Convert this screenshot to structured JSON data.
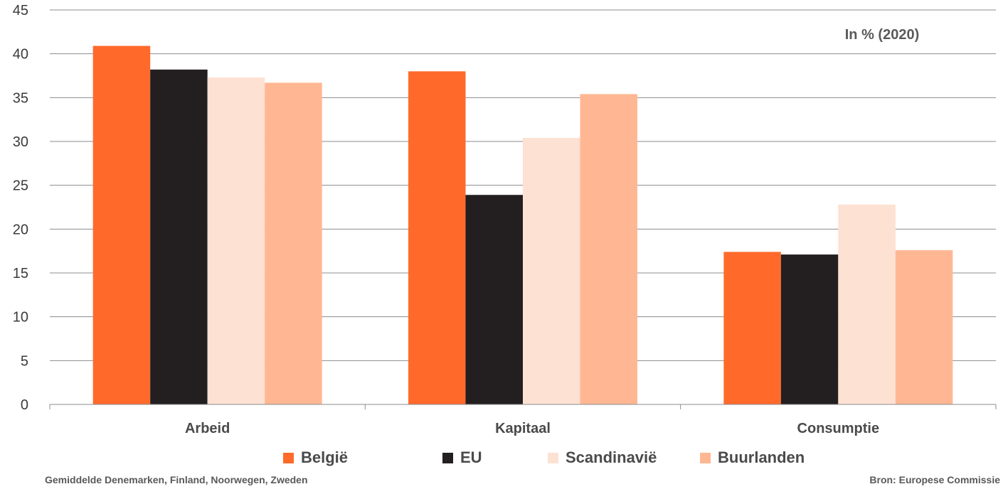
{
  "chart_data": {
    "type": "bar",
    "title": "",
    "unit_note": "In % (2020)",
    "xlabel": "",
    "ylabel": "",
    "ylim": [
      0,
      45
    ],
    "yticks": [
      0,
      5,
      10,
      15,
      20,
      25,
      30,
      35,
      40,
      45
    ],
    "grid": true,
    "legend_position": "bottom",
    "categories": [
      "Arbeid",
      "Kapitaal",
      "Consumptie"
    ],
    "series": [
      {
        "name": "België",
        "color": "#ff6a2b",
        "values": [
          40.9,
          38.0,
          17.4
        ]
      },
      {
        "name": "EU",
        "color": "#231f20",
        "values": [
          38.2,
          23.9,
          17.1
        ]
      },
      {
        "name": "Scandinavië",
        "color": "#fde1d3",
        "values": [
          37.3,
          30.4,
          22.8
        ]
      },
      {
        "name": "Buurlanden",
        "color": "#ffb793",
        "values": [
          36.7,
          35.4,
          17.6
        ]
      }
    ]
  },
  "footnotes": {
    "left": "Gemiddelde Denemarken, Finland, Noorwegen, Zweden",
    "right": "Bron: Europese Commissie"
  }
}
